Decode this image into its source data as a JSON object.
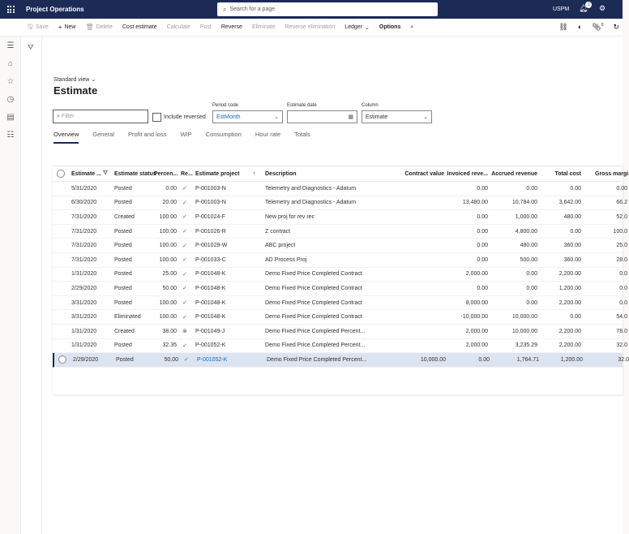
{
  "topbar": {
    "app_title": "Project Operations",
    "search_placeholder": "Search for a page",
    "company": "USPM",
    "notification_count": "1"
  },
  "actions": {
    "save": "Save",
    "new": "New",
    "delete": "Delete",
    "cost_estimate": "Cost estimate",
    "calculate": "Calculate",
    "post": "Post",
    "reverse": "Reverse",
    "eliminate": "Eliminate",
    "reverse_elimination": "Reverse elimination",
    "ledger": "Ledger",
    "options": "Options",
    "attachment_count": "0"
  },
  "page": {
    "view_name": "Standard view",
    "title": "Estimate"
  },
  "filters": {
    "filter_placeholder": "Filter",
    "include_reversed": "Include reversed",
    "period_code_label": "Period code",
    "period_code_value": "EstMonth",
    "estimate_date_label": "Estimate date",
    "column_label": "Column",
    "column_value": "Estimate"
  },
  "tabs": [
    "Overview",
    "General",
    "Profit and loss",
    "WIP",
    "Consumption",
    "Hour rate",
    "Totals"
  ],
  "grid": {
    "headers": {
      "estimate": "Estimate ...",
      "status": "Estimate status",
      "percent": "Percen...",
      "re": "Re...",
      "project": "Estimate project",
      "description": "Description",
      "contract_value": "Contract value",
      "invoiced": "Invoiced reve...",
      "accrued": "Accrued revenue",
      "total_cost": "Total cost",
      "gross": "Gross margi"
    },
    "rows": [
      {
        "date": "5/31/2020",
        "status": "Posted",
        "pct": "0.00",
        "re": "✓",
        "project": "P-001003-N",
        "desc": "Telemetry and Diagnostics - Adatum",
        "contract": "",
        "invoiced": "0.00",
        "accrued": "0.00",
        "cost": "0.00",
        "gross": "0.00"
      },
      {
        "date": "6/30/2020",
        "status": "Posted",
        "pct": "20.00",
        "re": "✓",
        "project": "P-001003-N",
        "desc": "Telemetry and Diagnostics - Adatum",
        "contract": "",
        "invoiced": "13,480.00",
        "accrued": "10,784.00",
        "cost": "3,642.00",
        "gross": "66.2"
      },
      {
        "date": "7/31/2020",
        "status": "Created",
        "pct": "100.00",
        "re": "✓",
        "project": "P-001024-F",
        "desc": "New proj for rev rec",
        "contract": "",
        "invoiced": "0.00",
        "accrued": "1,000.00",
        "cost": "480.00",
        "gross": "52.0"
      },
      {
        "date": "7/31/2020",
        "status": "Posted",
        "pct": "100.00",
        "re": "✓",
        "project": "P-001026-R",
        "desc": "Z contract",
        "contract": "",
        "invoiced": "0.00",
        "accrued": "4,800.00",
        "cost": "0.00",
        "gross": "100.0"
      },
      {
        "date": "7/31/2020",
        "status": "Posted",
        "pct": "100.00",
        "re": "✓",
        "project": "P-001029-W",
        "desc": "ABC project",
        "contract": "",
        "invoiced": "0.00",
        "accrued": "480.00",
        "cost": "360.00",
        "gross": "25.0"
      },
      {
        "date": "7/31/2020",
        "status": "Posted",
        "pct": "100.00",
        "re": "✓",
        "project": "P-001033-C",
        "desc": "AD Process Proj",
        "contract": "",
        "invoiced": "0.00",
        "accrued": "500.00",
        "cost": "360.00",
        "gross": "28.0"
      },
      {
        "date": "1/31/2020",
        "status": "Posted",
        "pct": "25.00",
        "re": "✓",
        "project": "P-001048-K",
        "desc": "Demo Fixed Price Completed Contract",
        "contract": "",
        "invoiced": "2,000.00",
        "accrued": "0.00",
        "cost": "2,200.00",
        "gross": "0.0"
      },
      {
        "date": "2/29/2020",
        "status": "Posted",
        "pct": "50.00",
        "re": "✓",
        "project": "P-001048-K",
        "desc": "Demo Fixed Price Completed Contract",
        "contract": "",
        "invoiced": "0.00",
        "accrued": "0.00",
        "cost": "1,200.00",
        "gross": "0.0"
      },
      {
        "date": "3/31/2020",
        "status": "Posted",
        "pct": "100.00",
        "re": "✓",
        "project": "P-001048-K",
        "desc": "Demo Fixed Price Completed Contract",
        "contract": "",
        "invoiced": "8,000.00",
        "accrued": "0.00",
        "cost": "2,200.00",
        "gross": "0.0"
      },
      {
        "date": "3/31/2020",
        "status": "Eliminated",
        "pct": "100.00",
        "re": "✓",
        "project": "P-001048-K",
        "desc": "Demo Fixed Price Completed Contract",
        "contract": "",
        "invoiced": "-10,000.00",
        "accrued": "10,000.00",
        "cost": "0.00",
        "gross": "54.0"
      },
      {
        "date": "1/31/2020",
        "status": "Created",
        "pct": "38.00",
        "re": "⊗",
        "project": "P-001049-J",
        "desc": "Demo Fixed Price Completed Percent...",
        "contract": "",
        "invoiced": "2,000.00",
        "accrued": "10,000.00",
        "cost": "2,200.00",
        "gross": "78.0"
      },
      {
        "date": "1/31/2020",
        "status": "Posted",
        "pct": "32.35",
        "re": "✓",
        "project": "P-001052-K",
        "desc": "Demo Fixed Price Completed Percent...",
        "contract": "",
        "invoiced": "2,000.00",
        "accrued": "3,235.29",
        "cost": "2,200.00",
        "gross": "32.0"
      },
      {
        "date": "2/29/2020",
        "status": "Posted",
        "pct": "50.00",
        "re": "✓",
        "project": "P-001052-K",
        "desc": "Demo Fixed Price Completed Percent...",
        "contract": "10,000.00",
        "invoiced": "0.00",
        "accrued": "1,764.71",
        "cost": "1,200.00",
        "gross": "32.0"
      }
    ],
    "selected_row": 12
  }
}
